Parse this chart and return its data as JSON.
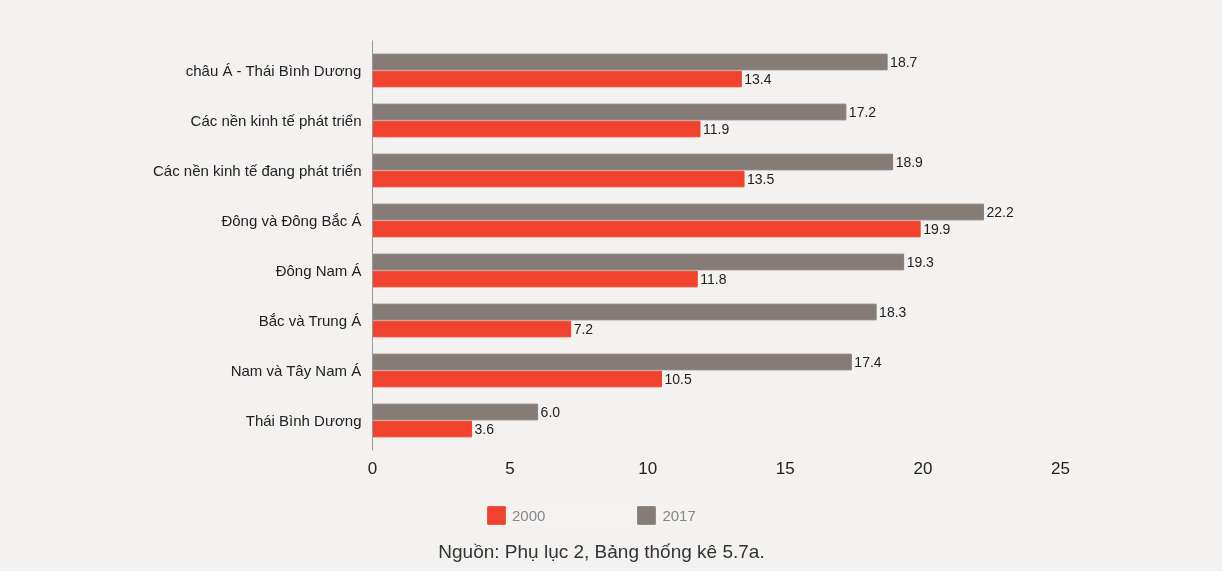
{
  "chart_data": {
    "type": "bar",
    "orientation": "horizontal",
    "categories": [
      "châu Á - Thái Bình Dương",
      "Các nền kinh tế phát triển",
      "Các nền kinh tế đang phát triển",
      "Đông và Đông Bắc Á",
      "Đông Nam Á",
      "Bắc và Trung Á",
      "Nam và Tây Nam Á",
      "Thái Bình Dương"
    ],
    "series": [
      {
        "name": "2000",
        "color": "#f0422d",
        "values": [
          13.4,
          11.9,
          13.5,
          19.9,
          11.8,
          7.2,
          10.5,
          3.6
        ],
        "value_labels": [
          "13.4",
          "11.9",
          "13.5",
          "19.9",
          "11.8",
          "7.2",
          "10.5",
          "3.6"
        ]
      },
      {
        "name": "2017",
        "color": "#857c78",
        "values": [
          18.7,
          17.2,
          18.9,
          22.2,
          19.3,
          18.3,
          17.4,
          6.0
        ],
        "value_labels": [
          "18.7",
          "17.2",
          "18.9",
          "22.2",
          "19.3",
          "18.3",
          "17.4",
          "6.0"
        ]
      }
    ],
    "xlim": [
      0,
      25
    ],
    "xticks": [
      0,
      5,
      10,
      15,
      20,
      25
    ],
    "legend": "bottom",
    "annotations": [
      "Nguồn: Phụ lục 2, Bảng thống kê 5.7a."
    ]
  }
}
